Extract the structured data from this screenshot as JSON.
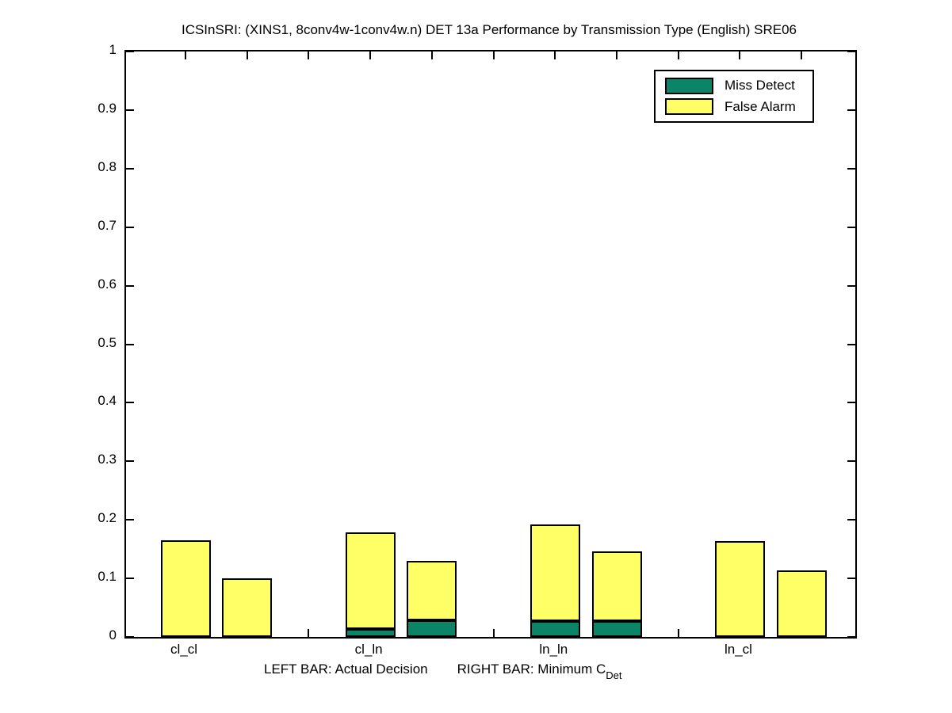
{
  "chart_data": {
    "type": "bar",
    "variant": "paired-stacked-bars",
    "title": "ICSInSRI: (XINS1, 8conv4w-1conv4w.n) DET 13a Performance by Transmission Type (English) SRE06",
    "ylim": [
      0,
      1
    ],
    "yticks": [
      {
        "value": 0.0,
        "label": "0"
      },
      {
        "value": 0.1,
        "label": "0.1"
      },
      {
        "value": 0.2,
        "label": "0.2"
      },
      {
        "value": 0.3,
        "label": "0.3"
      },
      {
        "value": 0.4,
        "label": "0.4"
      },
      {
        "value": 0.5,
        "label": "0.5"
      },
      {
        "value": 0.6,
        "label": "0.6"
      },
      {
        "value": 0.7,
        "label": "0.7"
      },
      {
        "value": 0.8,
        "label": "0.8"
      },
      {
        "value": 0.9,
        "label": "0.9"
      },
      {
        "value": 1.0,
        "label": "1"
      }
    ],
    "categories": [
      "cl_cl",
      "cl_ln",
      "ln_ln",
      "ln_cl"
    ],
    "legend": [
      {
        "name": "Miss Detect",
        "color": "#0b8467"
      },
      {
        "name": "False Alarm",
        "color": "#ffff66"
      }
    ],
    "groups": [
      {
        "label": "cl_cl",
        "left": {
          "miss_detect": 0.0,
          "false_alarm": 0.165
        },
        "right": {
          "miss_detect": 0.0,
          "false_alarm": 0.1
        }
      },
      {
        "label": "cl_ln",
        "left": {
          "miss_detect": 0.014,
          "false_alarm": 0.165
        },
        "right": {
          "miss_detect": 0.028,
          "false_alarm": 0.101
        }
      },
      {
        "label": "ln_ln",
        "left": {
          "miss_detect": 0.027,
          "false_alarm": 0.165
        },
        "right": {
          "miss_detect": 0.027,
          "false_alarm": 0.119
        }
      },
      {
        "label": "ln_cl",
        "left": {
          "miss_detect": 0.0,
          "false_alarm": 0.164
        },
        "right": {
          "miss_detect": 0.0,
          "false_alarm": 0.114
        }
      }
    ],
    "footnote": {
      "left_bar": "LEFT BAR: Actual Decision",
      "right_bar": "RIGHT BAR: Minimum C",
      "right_bar_subscript": "Det"
    }
  }
}
